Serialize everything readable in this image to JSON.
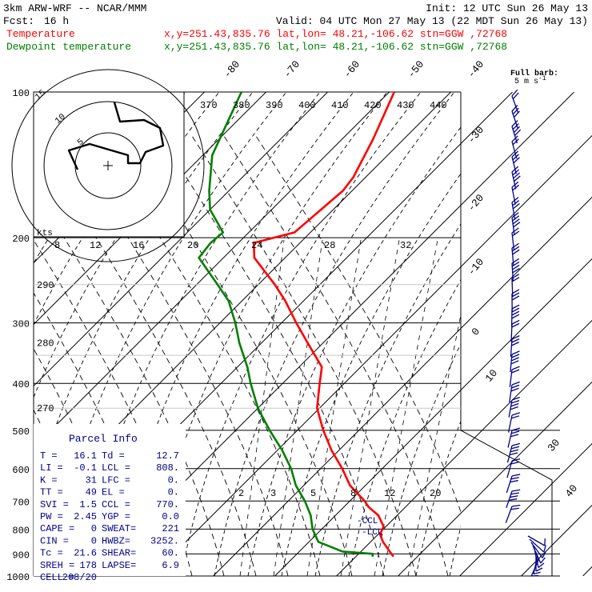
{
  "header": {
    "model": "3km ARW-WRF -- NCAR/MMM",
    "init": "Init: 12 UTC Sun 26 May 13",
    "fcst_label": "Fcst:",
    "fcst_value": "16 h",
    "valid": "Valid: 04 UTC Mon 27 May 13 (22 MDT Sun 26 May 13)"
  },
  "legend": {
    "temperature": {
      "label": "Temperature",
      "info": "x,y=251.43,835.76   lat,lon= 48.21,-106.62  stn=GGW ,72768",
      "color": "#ff0000"
    },
    "dewpoint": {
      "label": "Dewpoint temperature",
      "info": "x,y=251.43,835.76   lat,lon= 48.21,-106.62  stn=GGW ,72768",
      "color": "#008000"
    }
  },
  "barb_legend": {
    "line1": "Full barb:",
    "line2": "5 m s",
    "sup": "-1"
  },
  "colors": {
    "wind_barbs": "#00008b",
    "parcel_text": "#00008b",
    "hodograph": "#000000"
  },
  "parcel_info": {
    "title": "Parcel Info",
    "rows": [
      {
        "l1": "T   =",
        "v1": "16.1",
        "l2": "Td =",
        "v2": "12.7"
      },
      {
        "l1": "LI  =",
        "v1": "-0.1",
        "l2": "LCL =",
        "v2": "808."
      },
      {
        "l1": "K   =",
        "v1": "31",
        "l2": "LFC =",
        "v2": "0."
      },
      {
        "l1": "TT  =",
        "v1": "49",
        "l2": "EL  =",
        "v2": "0."
      },
      {
        "l1": "SVI =",
        "v1": "1.5",
        "l2": "CCL =",
        "v2": "770."
      },
      {
        "l1": "PW  =",
        "v1": "2.45",
        "l2": "YGP =",
        "v2": "0.0"
      },
      {
        "l1": "CAPE =",
        "v1": "0",
        "l2": "SWEAT=",
        "v2": "221"
      },
      {
        "l1": "CIN  =",
        "v1": "0",
        "l2": "HWBZ=",
        "v2": "3252."
      },
      {
        "l1": "Tc  =",
        "v1": "21.6",
        "l2": "SHEAR=",
        "v2": "60."
      },
      {
        "l1": "SREH =",
        "v1": "178",
        "l2": "LAPSE=",
        "v2": "6.9"
      },
      {
        "l1": "CELL =",
        "v1": "208/20",
        "l2": "",
        "v2": ""
      }
    ]
  },
  "markers": {
    "ccl": "-CCL",
    "lcl": "-LCL"
  },
  "hodograph": {
    "ring_labels": [
      "5",
      "10",
      "15"
    ],
    "units_label": "kts"
  },
  "chart_data": {
    "type": "line",
    "title": "",
    "xlabel": "",
    "ylabel": "",
    "y_scale": "log-pressure",
    "ylim": [
      1000,
      100
    ],
    "pressure_ticks": [
      100,
      200,
      300,
      400,
      500,
      600,
      700,
      800,
      900,
      1000
    ],
    "pressure_labels": [
      "100",
      "200",
      "300",
      "400",
      "500",
      "600",
      "700",
      "800",
      "900",
      "1000"
    ],
    "isotherm_labels_top": [
      "-80",
      "-70",
      "-60",
      "-50",
      "-40"
    ],
    "isotherm_labels_right": [
      "-30",
      "-20",
      "-10",
      "0",
      "10"
    ],
    "isotherm_labels_outer": [
      "30",
      "40"
    ],
    "theta_e_labels": [
      "370",
      "380",
      "390",
      "400",
      "410",
      "420",
      "430",
      "440"
    ],
    "theta_left_labels": [
      "290",
      "280",
      "270"
    ],
    "theta_left_pressures": [
      250,
      330,
      450
    ],
    "mixing_ratio_labels_top": [
      "8",
      "12",
      "16",
      "20",
      "24",
      "28",
      "32"
    ],
    "mixing_ratio_labels_low": [
      "2",
      "3",
      "5",
      "8",
      "12",
      "20"
    ],
    "series": [
      {
        "name": "Temperature",
        "color": "#ff0000",
        "points": [
          [
            912,
            16.1
          ],
          [
            880,
            14.0
          ],
          [
            850,
            12.0
          ],
          [
            820,
            10.3
          ],
          [
            790,
            9.6
          ],
          [
            750,
            7.0
          ],
          [
            720,
            4.0
          ],
          [
            700,
            2.4
          ],
          [
            650,
            -2.5
          ],
          [
            600,
            -6.5
          ],
          [
            550,
            -11.2
          ],
          [
            500,
            -15.8
          ],
          [
            450,
            -20.4
          ],
          [
            400,
            -24.0
          ],
          [
            370,
            -26.3
          ],
          [
            330,
            -32.5
          ],
          [
            300,
            -37.6
          ],
          [
            270,
            -43.0
          ],
          [
            250,
            -47.3
          ],
          [
            220,
            -55.0
          ],
          [
            205,
            -57.5
          ],
          [
            195,
            -52.6
          ],
          [
            160,
            -51.5
          ],
          [
            150,
            -52.0
          ],
          [
            125,
            -55.0
          ],
          [
            100,
            -59.2
          ]
        ]
      },
      {
        "name": "Dewpoint temperature",
        "color": "#008000",
        "points": [
          [
            912,
            12.7
          ],
          [
            900,
            12.3
          ],
          [
            890,
            7.0
          ],
          [
            850,
            1.5
          ],
          [
            800,
            -1.5
          ],
          [
            750,
            -4.0
          ],
          [
            700,
            -7.3
          ],
          [
            650,
            -11.3
          ],
          [
            600,
            -14.8
          ],
          [
            550,
            -19.2
          ],
          [
            500,
            -24.5
          ],
          [
            450,
            -30.0
          ],
          [
            400,
            -35.2
          ],
          [
            370,
            -38.4
          ],
          [
            330,
            -43.6
          ],
          [
            300,
            -47.5
          ],
          [
            270,
            -52.2
          ],
          [
            250,
            -56.6
          ],
          [
            220,
            -64.0
          ],
          [
            205,
            -64.5
          ],
          [
            195,
            -64.2
          ],
          [
            175,
            -70.0
          ],
          [
            160,
            -73.2
          ],
          [
            135,
            -78.5
          ],
          [
            100,
            -84.0
          ]
        ]
      }
    ],
    "grid": true,
    "legend_position": "top-left"
  }
}
